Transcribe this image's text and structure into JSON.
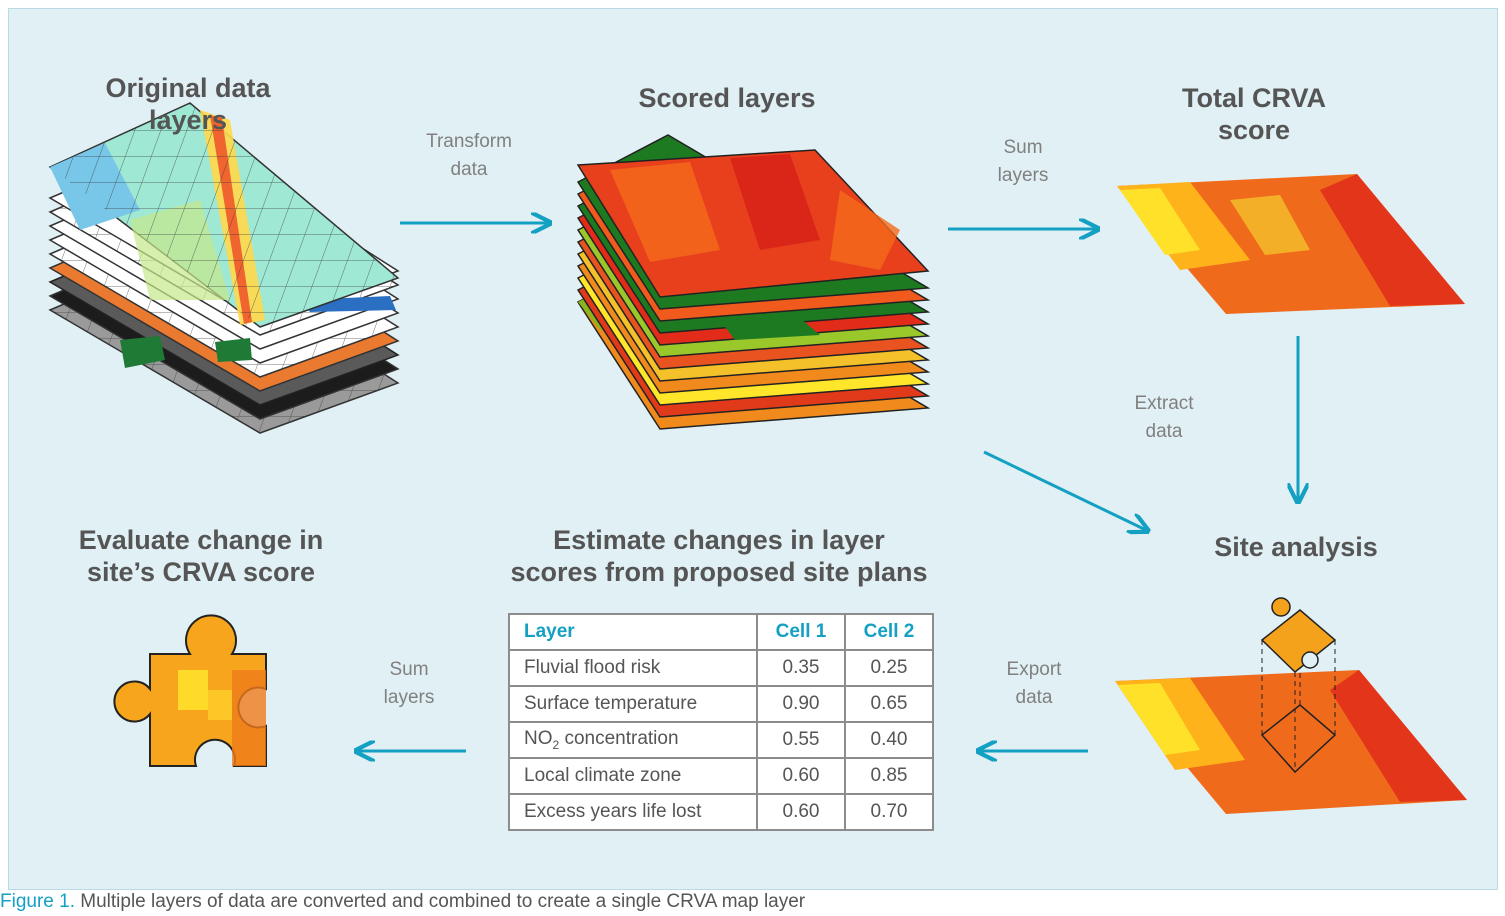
{
  "titles": {
    "original": [
      "Original data",
      "layers"
    ],
    "scored": "Scored layers",
    "total": [
      "Total CRVA",
      "score"
    ],
    "site": "Site analysis",
    "estimate": [
      "Estimate changes in layer",
      "scores from proposed site plans"
    ],
    "evaluate": [
      "Evaluate change in",
      "site’s CRVA score"
    ]
  },
  "arrow_labels": {
    "transform": [
      "Transform",
      "data"
    ],
    "sum_top": [
      "Sum",
      "layers"
    ],
    "extract": [
      "Extract",
      "data"
    ],
    "export": [
      "Export",
      "data"
    ],
    "sum_bottom": [
      "Sum",
      "layers"
    ]
  },
  "table": {
    "headers": [
      "Layer",
      "Cell 1",
      "Cell 2"
    ],
    "rows": [
      {
        "layer": "Fluvial flood risk",
        "cell1": "0.35",
        "cell2": "0.25"
      },
      {
        "layer": "Surface temperature",
        "cell1": "0.90",
        "cell2": "0.65"
      },
      {
        "layer_main": "NO",
        "layer_sub": "2",
        "layer_rest": " concentration",
        "cell1": "0.55",
        "cell2": "0.40"
      },
      {
        "layer": "Local climate zone",
        "cell1": "0.60",
        "cell2": "0.85"
      },
      {
        "layer": "Excess years life lost",
        "cell1": "0.60",
        "cell2": "0.70"
      }
    ]
  },
  "caption": {
    "figure": "Figure 1.",
    "text": " Multiple layers of data are converted and combined to create a single CRVA map layer"
  },
  "colors": {
    "arrow": "#14a0c3",
    "background": "#e1f0f5",
    "title": "#555555"
  }
}
